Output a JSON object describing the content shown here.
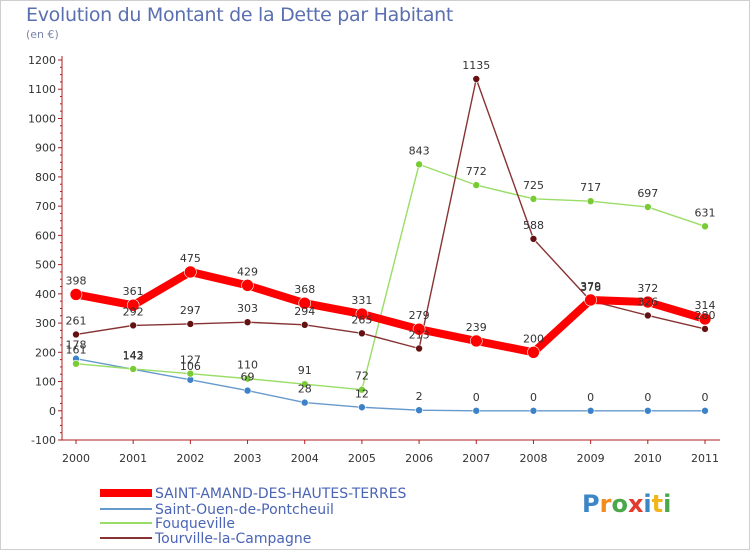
{
  "title": "Evolution du Montant de la Dette par Habitant",
  "subtitle": "(en €)",
  "logo": "Proxiti",
  "chart_data": {
    "type": "line",
    "title": "Evolution du Montant de la Dette par Habitant",
    "ylabel": "(en €)",
    "xlabel": "",
    "x": [
      "2000",
      "2001",
      "2002",
      "2003",
      "2004",
      "2005",
      "2006",
      "2007",
      "2008",
      "2009",
      "2010",
      "2011"
    ],
    "ylim": [
      -100,
      1200
    ],
    "yticks": [
      -100,
      0,
      100,
      200,
      300,
      400,
      500,
      600,
      700,
      800,
      900,
      1000,
      1100,
      1200
    ],
    "grid": false,
    "legend_position": "bottom-left",
    "series": [
      {
        "name": "SAINT-AMAND-DES-HAUTES-TERRES",
        "color": "#ff0000",
        "values": [
          398,
          361,
          475,
          429,
          368,
          331,
          279,
          239,
          200,
          379,
          372,
          314
        ]
      },
      {
        "name": "Saint-Ouen-de-Pontcheuil",
        "color": "#6699cc",
        "values": [
          178,
          142,
          106,
          69,
          28,
          12,
          2,
          0,
          0,
          0,
          0,
          0
        ]
      },
      {
        "name": "Fouqueville",
        "color": "#99dd66",
        "values": [
          161,
          143,
          127,
          110,
          91,
          72,
          843,
          772,
          725,
          717,
          697,
          631
        ]
      },
      {
        "name": "Tourville-la-Campagne",
        "color": "#883333",
        "values": [
          261,
          292,
          297,
          303,
          294,
          265,
          213,
          1135,
          588,
          376,
          326,
          280
        ]
      }
    ]
  }
}
